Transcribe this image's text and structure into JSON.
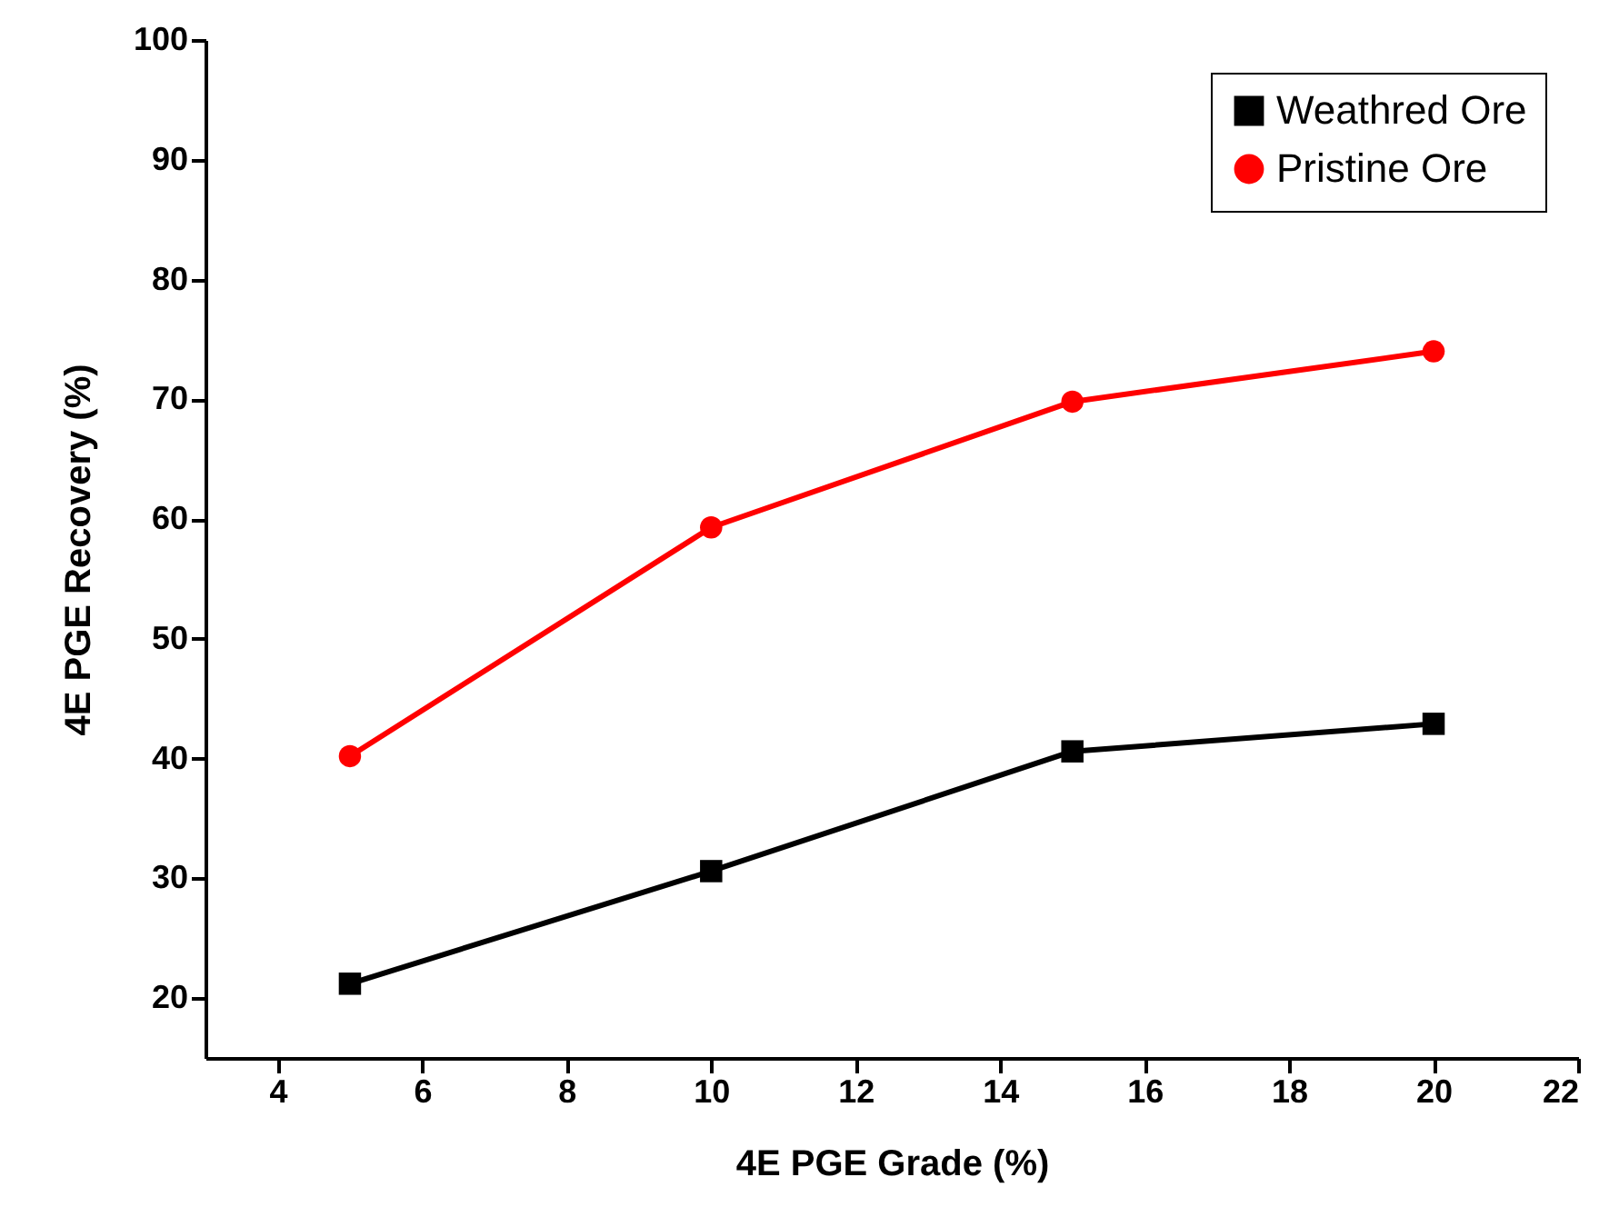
{
  "chart_data": {
    "type": "line",
    "xlabel": "4E PGE Grade (%)",
    "ylabel": "4E PGE Recovery (%)",
    "x": [
      5,
      10,
      15,
      20
    ],
    "series": [
      {
        "name": "Weathred Ore",
        "color": "#000000",
        "marker": "square",
        "values": [
          21.2,
          30.6,
          40.6,
          42.9
        ]
      },
      {
        "name": "Pristine Ore",
        "color": "#ff0000",
        "marker": "circle",
        "values": [
          40.2,
          59.3,
          69.8,
          74.0
        ]
      }
    ],
    "xlim": [
      3,
      22
    ],
    "xticks": [
      4,
      6,
      8,
      10,
      12,
      14,
      16,
      18,
      20,
      22
    ],
    "ylim": [
      15,
      100
    ],
    "yticks": [
      20,
      30,
      40,
      50,
      60,
      70,
      80,
      90,
      100
    ],
    "grid": false,
    "legend": "top right",
    "line_style": "solid"
  }
}
